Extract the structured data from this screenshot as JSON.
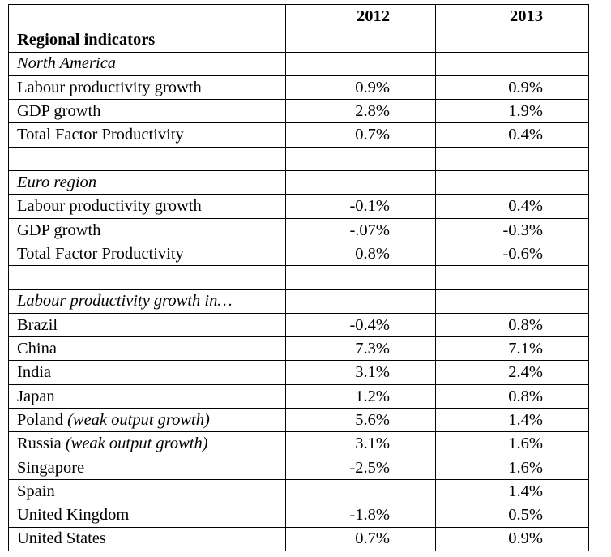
{
  "header": {
    "col_2012": "2012",
    "col_2013": "2013"
  },
  "title": "Regional indicators",
  "north_america": {
    "heading": "North America",
    "rows": [
      {
        "label": "Labour productivity growth",
        "v2012": "0.9%",
        "v2013": "0.9%"
      },
      {
        "label": "GDP growth",
        "v2012": "2.8%",
        "v2013": "1.9%"
      },
      {
        "label": "Total Factor Productivity",
        "v2012": "0.7%",
        "v2013": "0.4%"
      }
    ]
  },
  "euro_region": {
    "heading": "Euro region",
    "rows": [
      {
        "label": "Labour productivity growth",
        "v2012": "-0.1%",
        "v2013": "0.4%"
      },
      {
        "label": "GDP growth",
        "v2012": "-.07%",
        "v2013": "-0.3%"
      },
      {
        "label": "Total Factor Productivity",
        "v2012": "0.8%",
        "v2013": "-0.6%"
      }
    ]
  },
  "countries": {
    "heading": "Labour productivity growth in…",
    "rows": [
      {
        "label": "Brazil",
        "note": "",
        "v2012": "-0.4%",
        "v2013": "0.8%"
      },
      {
        "label": "China",
        "note": "",
        "v2012": "7.3%",
        "v2013": "7.1%"
      },
      {
        "label": "India",
        "note": "",
        "v2012": "3.1%",
        "v2013": "2.4%"
      },
      {
        "label": "Japan",
        "note": "",
        "v2012": "1.2%",
        "v2013": "0.8%"
      },
      {
        "label": "Poland",
        "note": "(weak output growth)",
        "v2012": "5.6%",
        "v2013": "1.4%"
      },
      {
        "label": "Russia",
        "note": "(weak output growth)",
        "v2012": "3.1%",
        "v2013": "1.6%"
      },
      {
        "label": "Singapore",
        "note": "",
        "v2012": "-2.5%",
        "v2013": "1.6%"
      },
      {
        "label": "Spain",
        "note": "",
        "v2012": "",
        "v2013": "1.4%"
      },
      {
        "label": "United Kingdom",
        "note": "",
        "v2012": "-1.8%",
        "v2013": "0.5%"
      },
      {
        "label": "United States",
        "note": "",
        "v2012": "0.7%",
        "v2013": "0.9%"
      }
    ]
  }
}
